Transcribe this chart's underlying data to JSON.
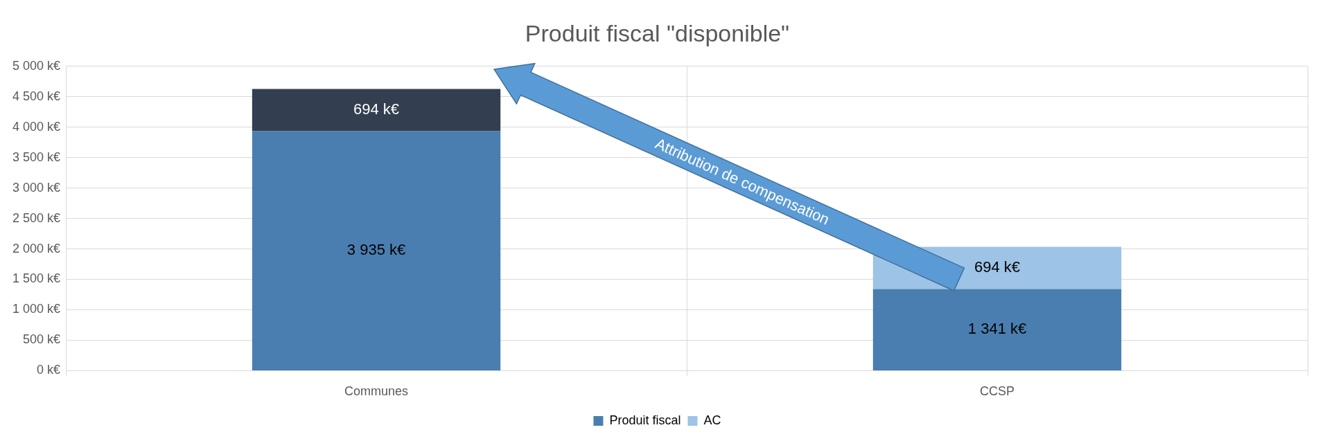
{
  "chart_data": {
    "type": "bar",
    "title": "Produit fiscal \"disponible\"",
    "categories": [
      "Communes",
      "CCSP"
    ],
    "stacked": true,
    "series": [
      {
        "name": "Produit fiscal",
        "color": "#4a7eb0",
        "values": [
          3935,
          1341
        ],
        "value_labels": [
          "3 935 k€",
          "1 341 k€"
        ]
      },
      {
        "name": "AC",
        "color": "#9dc3e6",
        "colors": [
          "#333f50",
          "#9dc3e6"
        ],
        "values": [
          694,
          694
        ],
        "value_labels": [
          "694 k€",
          "694 k€"
        ]
      }
    ],
    "ylim": [
      0,
      5000
    ],
    "yticks": [
      {
        "value": 0,
        "label": "0 k€"
      },
      {
        "value": 500,
        "label": "500 k€"
      },
      {
        "value": 1000,
        "label": "1 000 k€"
      },
      {
        "value": 1500,
        "label": "1 500 k€"
      },
      {
        "value": 2000,
        "label": "2 000 k€"
      },
      {
        "value": 2500,
        "label": "2 500 k€"
      },
      {
        "value": 3000,
        "label": "3 000 k€"
      },
      {
        "value": 3500,
        "label": "3 500 k€"
      },
      {
        "value": 4000,
        "label": "4 000 k€"
      },
      {
        "value": 4500,
        "label": "4 500 k€"
      },
      {
        "value": 5000,
        "label": "5 000 k€"
      }
    ],
    "grid": true,
    "legend": "bottom",
    "annotations": [
      "Attribution de compensation"
    ]
  }
}
